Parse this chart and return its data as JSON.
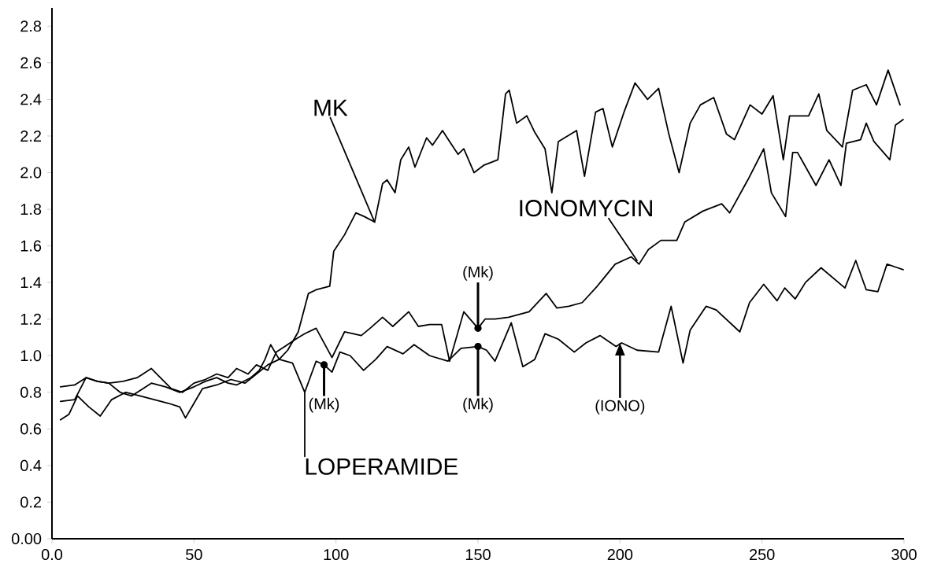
{
  "chart_data": {
    "type": "line",
    "xlim": [
      0,
      300
    ],
    "ylim": [
      0,
      2.9
    ],
    "xticks": [
      {
        "value": 0,
        "label": "0.0"
      },
      50,
      100,
      150,
      200,
      250,
      300
    ],
    "yticks": [
      {
        "value": 0,
        "label": "0.00"
      },
      0.2,
      0.4,
      0.6,
      0.8,
      {
        "value": 1,
        "label": "1.0"
      },
      1.2,
      1.4,
      1.6,
      1.8,
      {
        "value": 2,
        "label": "2.0"
      },
      2.2,
      2.4,
      2.6,
      2.8
    ],
    "series": [
      {
        "name": "MK",
        "color": "#000000",
        "x": [
          3,
          6,
          9,
          13,
          17,
          21,
          26,
          31,
          36,
          41,
          45,
          47,
          50,
          53,
          58,
          63,
          68,
          72,
          76,
          80,
          83,
          86.7,
          90.3,
          93,
          97.8,
          99.2,
          103,
          107,
          110,
          113.6,
          116.4,
          118,
          120.8,
          122.8,
          125.6,
          127.8,
          131.9,
          134,
          137.5,
          140,
          143,
          145,
          148.6,
          152,
          157,
          159.7,
          161,
          163.6,
          167.2,
          170,
          173.6,
          176,
          178.3,
          184.7,
          187.5,
          191.4,
          194,
          197.3,
          201.4,
          205.3,
          209.7,
          213.6,
          217.2,
          220.8,
          224.7,
          228.3,
          233,
          237.5,
          240.3,
          245.8,
          250,
          253.9,
          257.5,
          259.7,
          266.4,
          270,
          272.8,
          278.3,
          281.9,
          286.7,
          290.3,
          294.4,
          298.6
        ],
        "values": [
          0.65,
          0.68,
          0.78,
          0.72,
          0.67,
          0.76,
          0.8,
          0.78,
          0.76,
          0.74,
          0.72,
          0.66,
          0.74,
          0.82,
          0.84,
          0.87,
          0.85,
          0.9,
          0.95,
          0.98,
          1.03,
          1.13,
          1.34,
          1.36,
          1.38,
          1.57,
          1.66,
          1.78,
          1.76,
          1.73,
          1.94,
          1.96,
          1.89,
          2.07,
          2.14,
          2.03,
          2.19,
          2.15,
          2.23,
          2.17,
          2.1,
          2.13,
          2.0,
          2.04,
          2.07,
          2.43,
          2.45,
          2.27,
          2.31,
          2.22,
          2.13,
          1.89,
          2.17,
          2.23,
          1.98,
          2.33,
          2.35,
          2.14,
          2.33,
          2.49,
          2.4,
          2.46,
          2.21,
          2.0,
          2.27,
          2.37,
          2.41,
          2.21,
          2.18,
          2.37,
          2.32,
          2.42,
          2.07,
          2.31,
          2.31,
          2.43,
          2.23,
          2.14,
          2.45,
          2.48,
          2.37,
          2.56,
          2.37
        ]
      },
      {
        "name": "IONOMYCIN",
        "color": "#000000",
        "x": [
          3,
          8,
          12,
          16,
          20,
          25,
          30,
          35,
          42,
          46,
          50,
          54,
          58,
          62,
          65,
          69,
          72,
          76,
          79,
          82,
          85.8,
          89,
          93,
          98.6,
          103,
          108.9,
          112,
          116.4,
          120,
          125.6,
          129,
          133,
          137.2,
          140,
          145,
          150,
          152.5,
          156,
          160.8,
          168,
          174,
          177.8,
          182,
          186.7,
          192,
          198.3,
          204,
          206.7,
          210,
          214.4,
          220,
          222.8,
          229.2,
          235.8,
          238.6,
          245,
          250.6,
          253.3,
          258.3,
          260.8,
          262.5,
          269,
          273.6,
          277.8,
          279.7,
          284.7,
          286.7,
          289.4,
          295,
          297,
          299.7
        ],
        "values": [
          0.83,
          0.84,
          0.88,
          0.86,
          0.85,
          0.86,
          0.88,
          0.93,
          0.82,
          0.8,
          0.85,
          0.87,
          0.9,
          0.88,
          0.93,
          0.9,
          0.95,
          0.92,
          1.02,
          1.05,
          1.09,
          1.12,
          1.15,
          0.99,
          1.13,
          1.11,
          1.15,
          1.21,
          1.16,
          1.24,
          1.16,
          1.17,
          1.17,
          0.97,
          1.24,
          1.15,
          1.2,
          1.2,
          1.21,
          1.24,
          1.34,
          1.26,
          1.27,
          1.29,
          1.38,
          1.5,
          1.54,
          1.5,
          1.58,
          1.63,
          1.63,
          1.73,
          1.79,
          1.83,
          1.78,
          1.96,
          2.13,
          1.89,
          1.76,
          2.11,
          2.11,
          1.93,
          2.07,
          1.93,
          2.16,
          2.18,
          2.27,
          2.17,
          2.07,
          2.26,
          2.29
        ]
      },
      {
        "name": "LOPERAMIDE",
        "color": "#000000",
        "x": [
          3,
          8,
          12,
          16,
          20,
          24,
          28,
          32,
          35,
          40,
          45,
          50,
          54,
          58,
          62,
          65,
          70,
          73,
          75,
          77,
          80,
          84.7,
          89,
          93,
          95.8,
          98.6,
          101.4,
          105,
          109.7,
          114,
          118,
          123.6,
          127.5,
          133,
          139.4,
          144,
          150,
          153,
          156,
          161.7,
          165.8,
          170,
          173.6,
          178.3,
          183.9,
          188,
          193,
          198.6,
          200.6,
          206,
          213.6,
          218,
          222.2,
          224.7,
          230.3,
          233.9,
          242.2,
          245.6,
          250.6,
          255.3,
          258,
          261.7,
          265.3,
          270.8,
          279.2,
          283,
          286.7,
          290.8,
          294,
          297.8,
          299.7
        ],
        "values": [
          0.75,
          0.76,
          0.88,
          0.86,
          0.85,
          0.8,
          0.78,
          0.82,
          0.85,
          0.83,
          0.8,
          0.83,
          0.86,
          0.88,
          0.85,
          0.84,
          0.88,
          0.92,
          0.98,
          1.06,
          0.98,
          0.96,
          0.8,
          0.97,
          0.95,
          0.91,
          1.02,
          1.0,
          0.92,
          0.98,
          1.05,
          1.01,
          1.06,
          1.0,
          0.97,
          1.04,
          1.05,
          1.03,
          0.97,
          1.18,
          0.94,
          0.98,
          1.12,
          1.09,
          1.02,
          1.07,
          1.11,
          1.05,
          1.07,
          1.03,
          1.02,
          1.27,
          0.96,
          1.14,
          1.27,
          1.25,
          1.13,
          1.29,
          1.39,
          1.3,
          1.37,
          1.31,
          1.4,
          1.48,
          1.37,
          1.52,
          1.36,
          1.35,
          1.5,
          1.48,
          1.47
        ]
      }
    ],
    "annotations": [
      {
        "text": "(Mk)",
        "x": 95.8,
        "y": 0.95
      },
      {
        "text": "(Mk)",
        "x": 150,
        "y": 1.15
      },
      {
        "text": "(Mk)",
        "x": 150,
        "y": 1.05
      },
      {
        "text": "(IONO)",
        "x": 200,
        "y": 1.07
      }
    ]
  }
}
